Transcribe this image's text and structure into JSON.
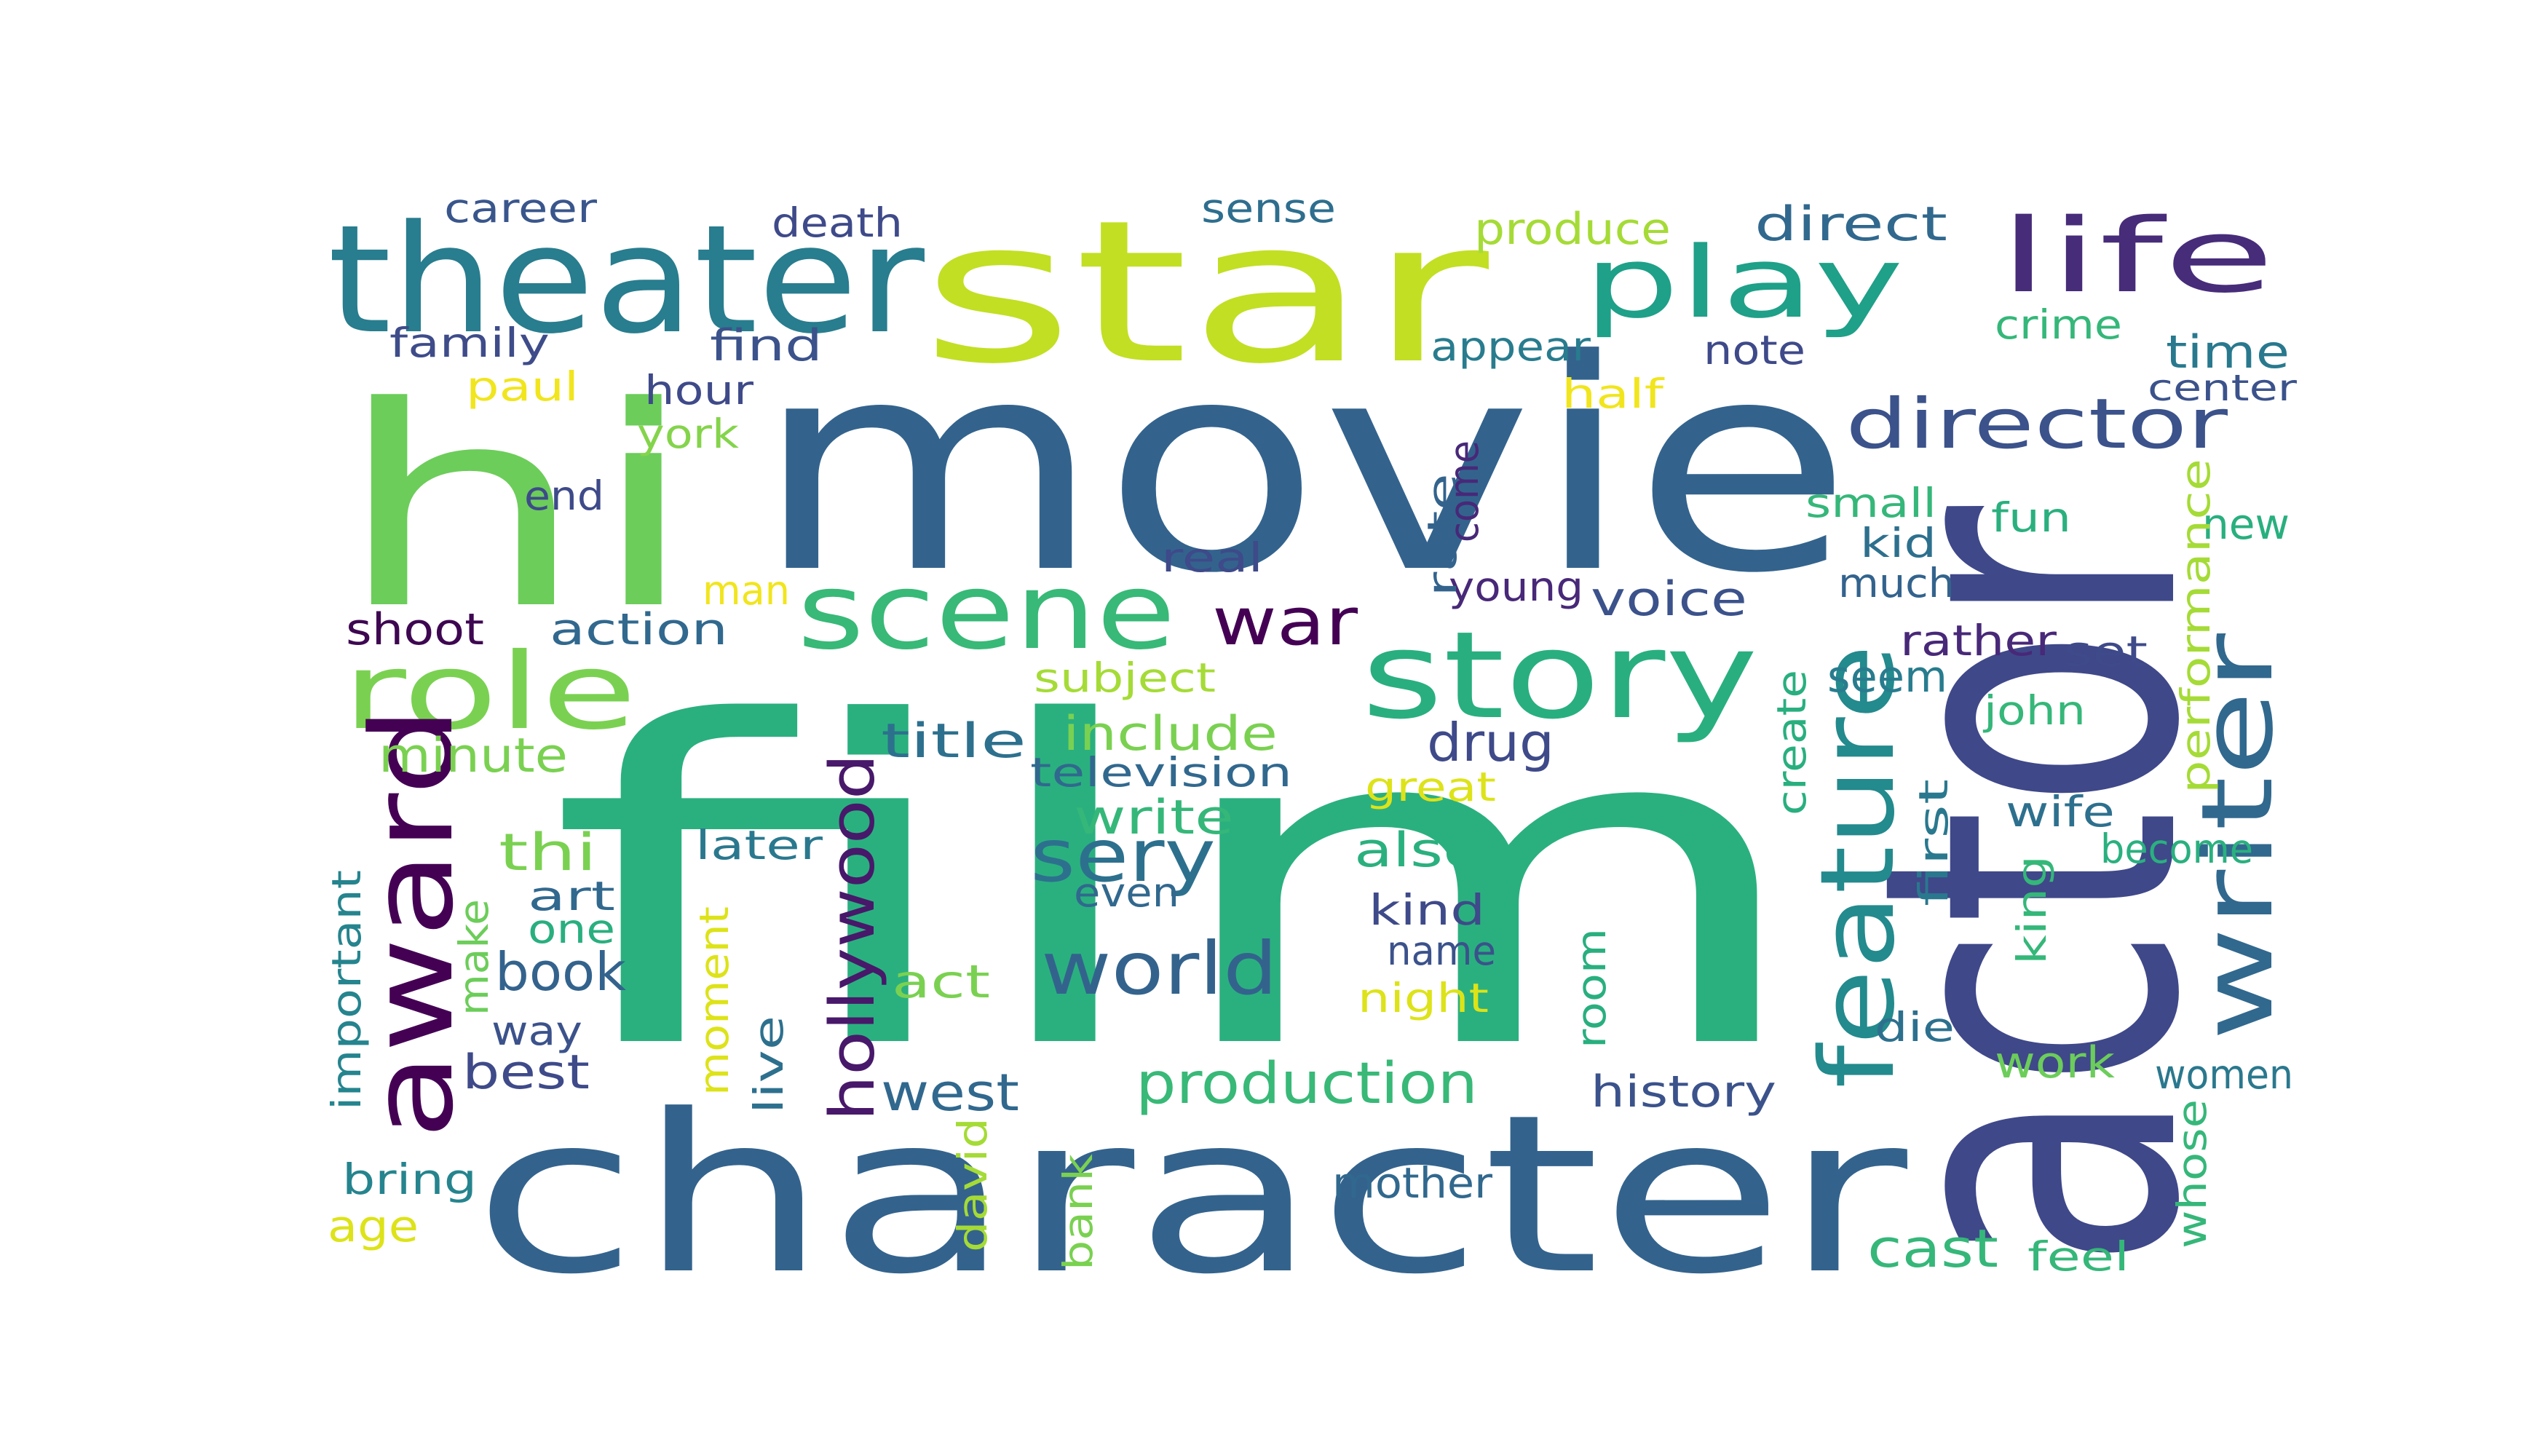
{
  "words": [
    {
      "text": "film",
      "color": "#2ab07f"
    },
    {
      "text": "movie",
      "color": "#33638d"
    },
    {
      "text": "character",
      "color": "#33638d"
    },
    {
      "text": "actor",
      "color": "#3f4889"
    },
    {
      "text": "hi",
      "color": "#6ccd5a"
    },
    {
      "text": "star",
      "color": "#c2df23"
    },
    {
      "text": "theater",
      "color": "#287d8e"
    },
    {
      "text": "scene",
      "color": "#38b977"
    },
    {
      "text": "story",
      "color": "#29af7f"
    },
    {
      "text": "play",
      "color": "#1fa088"
    },
    {
      "text": "life",
      "color": "#472c7a"
    },
    {
      "text": "role",
      "color": "#7ad151"
    },
    {
      "text": "award",
      "color": "#440154"
    },
    {
      "text": "writer",
      "color": "#31688e"
    },
    {
      "text": "feature",
      "color": "#238a8d"
    },
    {
      "text": "director",
      "color": "#3b528b"
    },
    {
      "text": "world",
      "color": "#33638d"
    },
    {
      "text": "sery",
      "color": "#2d708e"
    },
    {
      "text": "hollywood",
      "color": "#48186a"
    },
    {
      "text": "war",
      "color": "#440154"
    },
    {
      "text": "production",
      "color": "#38b977"
    },
    {
      "text": "career",
      "color": "#39568c"
    },
    {
      "text": "death",
      "color": "#3e4a89"
    },
    {
      "text": "sense",
      "color": "#2e6e8e"
    },
    {
      "text": "produce",
      "color": "#a5db36"
    },
    {
      "text": "direct",
      "color": "#31688e"
    },
    {
      "text": "family",
      "color": "#3e4c8a"
    },
    {
      "text": "find",
      "color": "#3b528b"
    },
    {
      "text": "appear",
      "color": "#287c8e"
    },
    {
      "text": "note",
      "color": "#3e4a89"
    },
    {
      "text": "crime",
      "color": "#35b779"
    },
    {
      "text": "time",
      "color": "#29798e"
    },
    {
      "text": "paul",
      "color": "#f1e51d"
    },
    {
      "text": "hour",
      "color": "#3e4a89"
    },
    {
      "text": "half",
      "color": "#f1e51d"
    },
    {
      "text": "center",
      "color": "#3b528b"
    },
    {
      "text": "york",
      "color": "#84d44b"
    },
    {
      "text": "end",
      "color": "#3e4a89"
    },
    {
      "text": "small",
      "color": "#35b779"
    },
    {
      "text": "fun",
      "color": "#2ab07f"
    },
    {
      "text": "new",
      "color": "#29af7f"
    },
    {
      "text": "kid",
      "color": "#2d708e"
    },
    {
      "text": "real",
      "color": "#3e4a89"
    },
    {
      "text": "man",
      "color": "#f1e51d"
    },
    {
      "text": "young",
      "color": "#482878"
    },
    {
      "text": "much",
      "color": "#33638d"
    },
    {
      "text": "shoot",
      "color": "#3e0751"
    },
    {
      "text": "action",
      "color": "#31688e"
    },
    {
      "text": "voice",
      "color": "#3b528b"
    },
    {
      "text": "rather",
      "color": "#482878"
    },
    {
      "text": "set",
      "color": "#3e4a89"
    },
    {
      "text": "subject",
      "color": "#a5db36"
    },
    {
      "text": "seem",
      "color": "#287c8e"
    },
    {
      "text": "include",
      "color": "#7ad151"
    },
    {
      "text": "john",
      "color": "#35b779"
    },
    {
      "text": "minute",
      "color": "#7ad151"
    },
    {
      "text": "title",
      "color": "#2d708e"
    },
    {
      "text": "television",
      "color": "#31688e"
    },
    {
      "text": "drug",
      "color": "#3e4a89"
    },
    {
      "text": "great",
      "color": "#dde318"
    },
    {
      "text": "write",
      "color": "#35b779"
    },
    {
      "text": "wife",
      "color": "#2d708e"
    },
    {
      "text": "later",
      "color": "#2a788e"
    },
    {
      "text": "also",
      "color": "#2ab07f"
    },
    {
      "text": "become",
      "color": "#2ab07f"
    },
    {
      "text": "thi",
      "color": "#7ad151"
    },
    {
      "text": "even",
      "color": "#31688e"
    },
    {
      "text": "art",
      "color": "#31688e"
    },
    {
      "text": "kind",
      "color": "#3e4a89"
    },
    {
      "text": "one",
      "color": "#29af7f"
    },
    {
      "text": "name",
      "color": "#3b528b"
    },
    {
      "text": "book",
      "color": "#33638d"
    },
    {
      "text": "act",
      "color": "#7ad151"
    },
    {
      "text": "night",
      "color": "#dde318"
    },
    {
      "text": "way",
      "color": "#3b528b"
    },
    {
      "text": "die",
      "color": "#2d708e"
    },
    {
      "text": "best",
      "color": "#3e4a89"
    },
    {
      "text": "west",
      "color": "#31688e"
    },
    {
      "text": "work",
      "color": "#6ccd5a"
    },
    {
      "text": "history",
      "color": "#3b528b"
    },
    {
      "text": "women",
      "color": "#2a788e"
    },
    {
      "text": "bring",
      "color": "#25848e"
    },
    {
      "text": "mother",
      "color": "#31688e"
    },
    {
      "text": "age",
      "color": "#dde318"
    },
    {
      "text": "cast",
      "color": "#35b779"
    },
    {
      "text": "feel",
      "color": "#35b779"
    },
    {
      "text": "rate",
      "color": "#33638d"
    },
    {
      "text": "come",
      "color": "#482878"
    },
    {
      "text": "performance",
      "color": "#a5db36"
    },
    {
      "text": "create",
      "color": "#29af7f"
    },
    {
      "text": "first",
      "color": "#2a788e"
    },
    {
      "text": "king",
      "color": "#35b779"
    },
    {
      "text": "important",
      "color": "#25848e"
    },
    {
      "text": "make",
      "color": "#6ccd5a"
    },
    {
      "text": "moment",
      "color": "#dde318"
    },
    {
      "text": "live",
      "color": "#2d708e"
    },
    {
      "text": "david",
      "color": "#a5db36"
    },
    {
      "text": "bank",
      "color": "#7ad151"
    },
    {
      "text": "room",
      "color": "#29af7f"
    },
    {
      "text": "whose",
      "color": "#35b779"
    }
  ]
}
